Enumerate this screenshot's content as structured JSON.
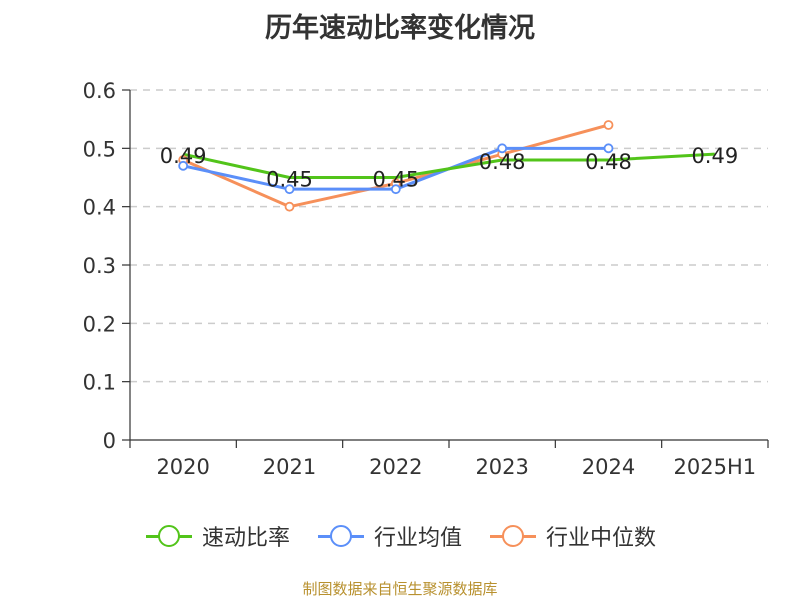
{
  "chart_data": {
    "type": "line",
    "title": "历年速动比率变化情况",
    "categories": [
      "2020",
      "2021",
      "2022",
      "2023",
      "2024",
      "2025H1"
    ],
    "ylim": [
      0,
      0.6
    ],
    "yticks": [
      "0",
      "0.1",
      "0.2",
      "0.3",
      "0.4",
      "0.5",
      "0.6"
    ],
    "grid": true,
    "legend_position": "bottom",
    "series": [
      {
        "name": "速动比率",
        "color": "#52c41a",
        "values": [
          0.49,
          0.45,
          0.45,
          0.48,
          0.48,
          0.49
        ],
        "labels": [
          "0.49",
          "0.45",
          "0.45",
          "0.48",
          "0.48",
          "0.49"
        ]
      },
      {
        "name": "行业均值",
        "color": "#5b8ff9",
        "values": [
          0.47,
          0.43,
          0.43,
          0.5,
          0.5,
          null
        ]
      },
      {
        "name": "行业中位数",
        "color": "#f6905a",
        "values": [
          0.48,
          0.4,
          0.44,
          0.49,
          0.54,
          null
        ]
      }
    ]
  },
  "footer": "制图数据来自恒生聚源数据库"
}
